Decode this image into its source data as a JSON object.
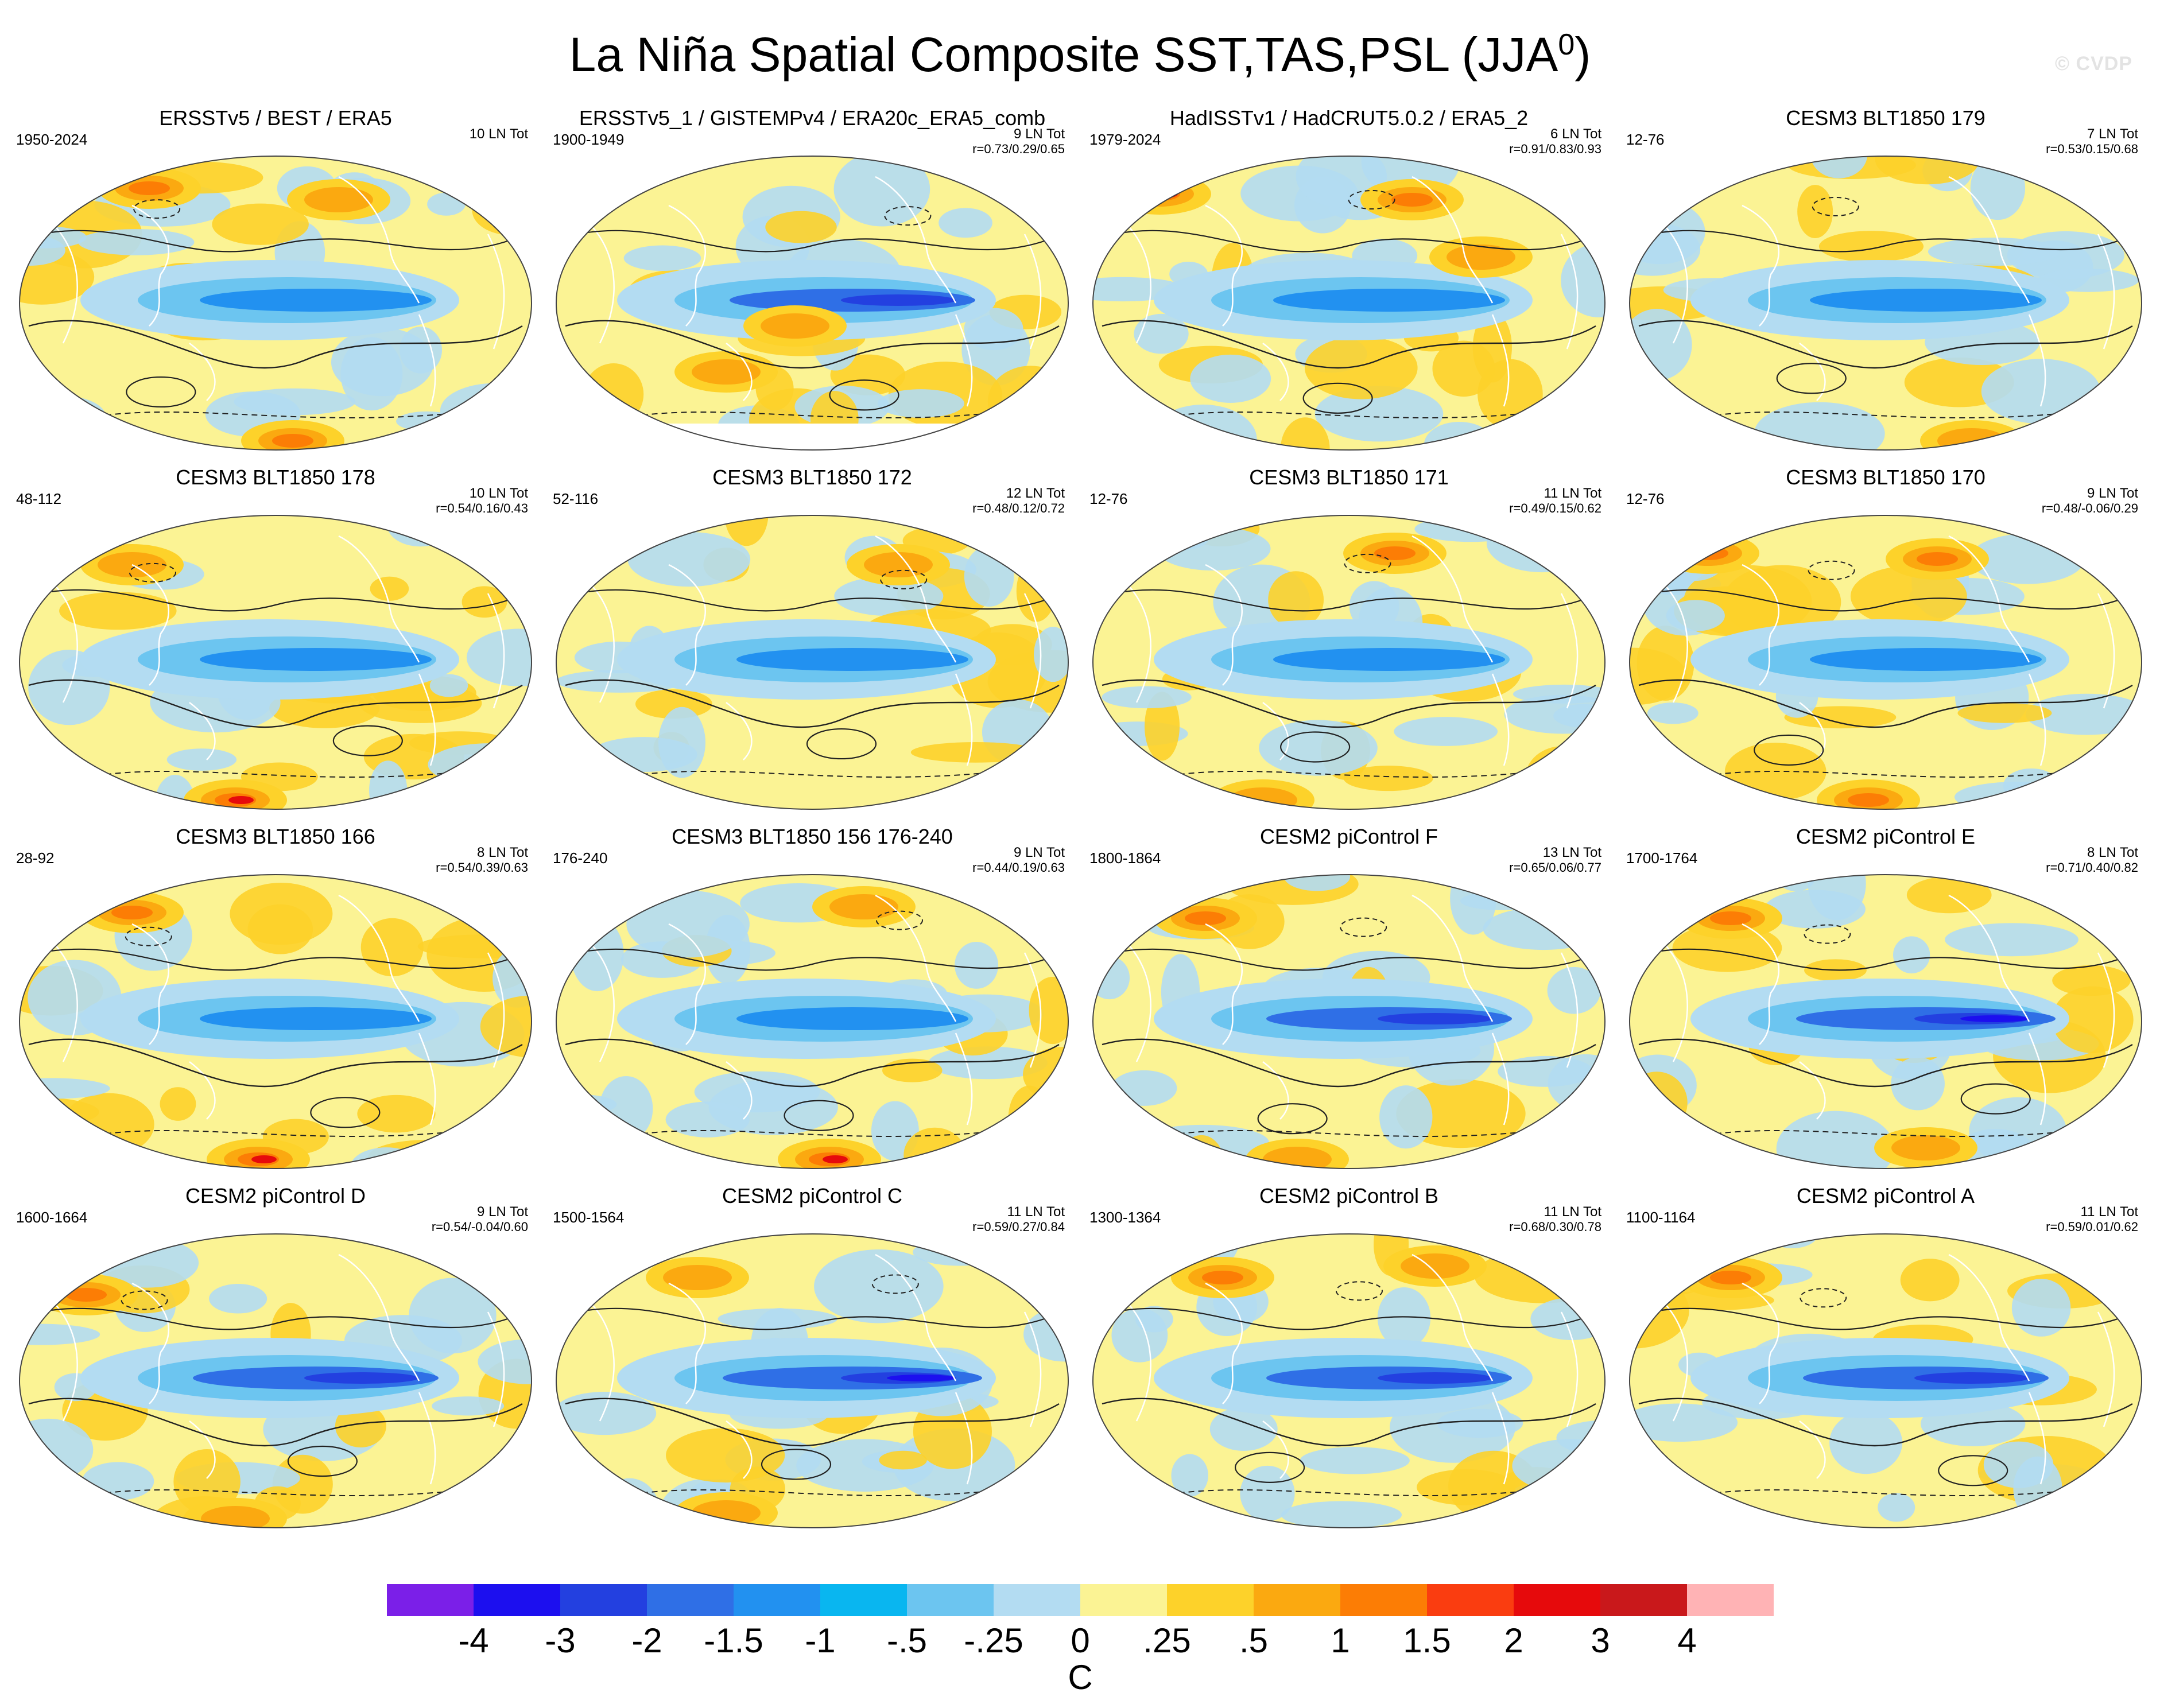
{
  "title": {
    "text": "La Niña Spatial Composite SST,TAS,PSL (JJA",
    "superscript": "0",
    "close": ")"
  },
  "watermark": "© CVDP",
  "chart_data": {
    "type": "heatmap",
    "description_unit": "C",
    "colorbar": {
      "ticks": [
        "-4",
        "-3",
        "-2",
        "-1.5",
        "-1",
        "-.5",
        "-.25",
        "0",
        ".25",
        ".5",
        "1",
        "1.5",
        "2",
        "3",
        "4"
      ],
      "colors": [
        "#7b1fe8",
        "#1c0fef",
        "#2340e0",
        "#2f6fe6",
        "#2291f0",
        "#09b6f0",
        "#6cc5f0",
        "#b3dcf2",
        "#fbf394",
        "#fdd22a",
        "#fba910",
        "#fc7d05",
        "#fa3d10",
        "#e60a0c",
        "#c9181b",
        "#ffb3b5"
      ],
      "unit": "C"
    },
    "panels": [
      {
        "title": "ERSSTv5 / BEST / ERA5",
        "years": "1950-2024",
        "count": "10 LN Tot",
        "corr": "",
        "style": "obs1"
      },
      {
        "title": "ERSSTv5_1 / GISTEMPv4 / ERA20c_ERA5_comb",
        "years": "1900-1949",
        "count": "9 LN Tot",
        "corr": "r=0.73/0.29/0.65",
        "style": "obs2"
      },
      {
        "title": "HadISSTv1 / HadCRUT5.0.2 / ERA5_2",
        "years": "1979-2024",
        "count": "6 LN Tot",
        "corr": "r=0.91/0.83/0.93",
        "style": "obs3"
      },
      {
        "title": "CESM3 BLT1850 179",
        "years": "12-76",
        "count": "7 LN Tot",
        "corr": "r=0.53/0.15/0.68",
        "style": "m1"
      },
      {
        "title": "CESM3 BLT1850 178",
        "years": "48-112",
        "count": "10 LN Tot",
        "corr": "r=0.54/0.16/0.43",
        "style": "m2"
      },
      {
        "title": "CESM3 BLT1850 172",
        "years": "52-116",
        "count": "12 LN Tot",
        "corr": "r=0.48/0.12/0.72",
        "style": "m3"
      },
      {
        "title": "CESM3 BLT1850 171",
        "years": "12-76",
        "count": "11 LN Tot",
        "corr": "r=0.49/0.15/0.62",
        "style": "m4"
      },
      {
        "title": "CESM3 BLT1850 170",
        "years": "12-76",
        "count": "9 LN Tot",
        "corr": "r=0.48/-0.06/0.29",
        "style": "m5"
      },
      {
        "title": "CESM3 BLT1850 166",
        "years": "28-92",
        "count": "8 LN Tot",
        "corr": "r=0.54/0.39/0.63",
        "style": "m6"
      },
      {
        "title": "CESM3 BLT1850 156 176-240",
        "years": "176-240",
        "count": "9 LN Tot",
        "corr": "r=0.44/0.19/0.63",
        "style": "m7"
      },
      {
        "title": "CESM2 piControl F",
        "years": "1800-1864",
        "count": "13 LN Tot",
        "corr": "r=0.65/0.06/0.77",
        "style": "c1"
      },
      {
        "title": "CESM2 piControl E",
        "years": "1700-1764",
        "count": "8 LN Tot",
        "corr": "r=0.71/0.40/0.82",
        "style": "c2"
      },
      {
        "title": "CESM2 piControl D",
        "years": "1600-1664",
        "count": "9 LN Tot",
        "corr": "r=0.54/-0.04/0.60",
        "style": "c3"
      },
      {
        "title": "CESM2 piControl C",
        "years": "1500-1564",
        "count": "11 LN Tot",
        "corr": "r=0.59/0.27/0.84",
        "style": "c4"
      },
      {
        "title": "CESM2 piControl B",
        "years": "1300-1364",
        "count": "11 LN Tot",
        "corr": "r=0.68/0.30/0.78",
        "style": "c5"
      },
      {
        "title": "CESM2 piControl A",
        "years": "1100-1164",
        "count": "11 LN Tot",
        "corr": "r=0.59/0.01/0.62",
        "style": "c6"
      }
    ]
  }
}
